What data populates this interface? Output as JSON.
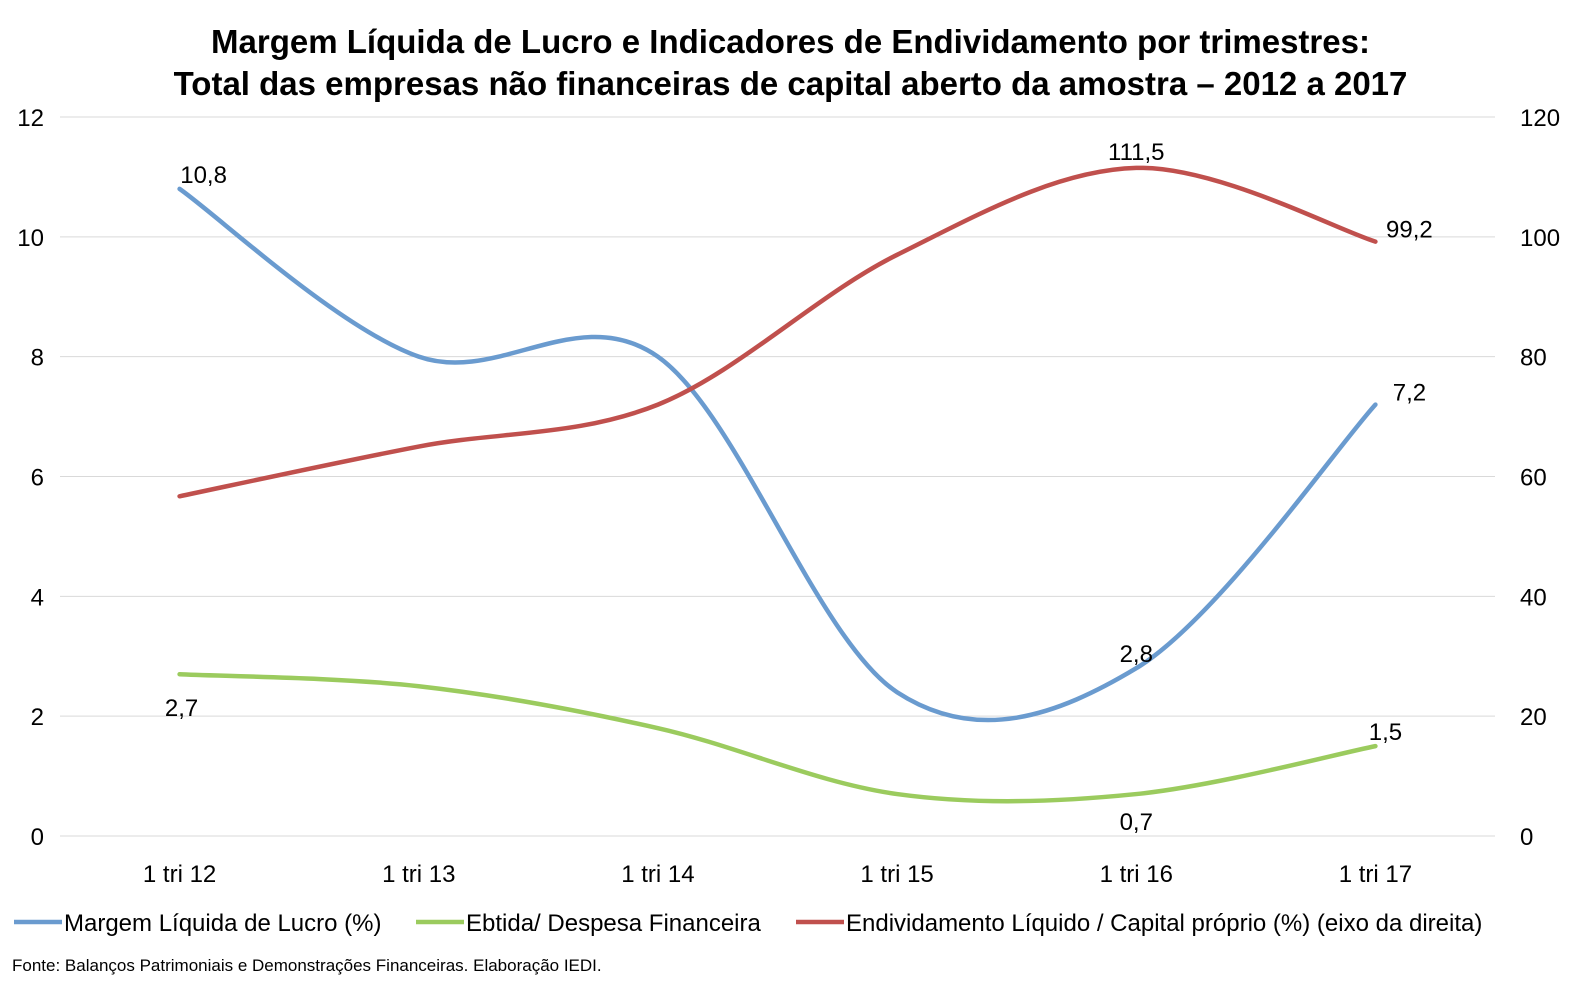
{
  "title_line1": "Margem Líquida de Lucro e Indicadores de Endividamento por trimestres:",
  "title_line2": "Total das empresas não financeiras de capital aberto da amostra – 2012 a 2017",
  "source": "Fonte: Balanços Patrimoniais e Demonstrações Financeiras. Elaboração IEDI.",
  "chart_data": {
    "type": "line",
    "categories": [
      "1 tri 12",
      "1 tri 13",
      "1 tri 14",
      "1 tri 15",
      "1 tri 16",
      "1 tri 17"
    ],
    "y_left": {
      "min": 0,
      "max": 12,
      "ticks": [
        "0",
        "2",
        "4",
        "6",
        "8",
        "10",
        "12"
      ]
    },
    "y_right": {
      "min": 0,
      "max": 120,
      "ticks": [
        "0",
        "20",
        "40",
        "60",
        "80",
        "100",
        "120"
      ]
    },
    "grid": true,
    "legend_position": "bottom",
    "series": [
      {
        "name": "Margem Líquida de Lucro (%)",
        "axis": "left",
        "color": "#6A9BCF",
        "values": [
          10.8,
          8.0,
          8.0,
          2.4,
          2.8,
          7.2
        ],
        "labels": [
          "10,8",
          "",
          "",
          "",
          "2,8",
          "7,2"
        ]
      },
      {
        "name": "Ebtida/ Despesa Financeira",
        "axis": "left",
        "color": "#9BCB5E",
        "values": [
          2.7,
          2.5,
          1.8,
          0.7,
          0.7,
          1.5
        ],
        "labels": [
          "2,7",
          "",
          "",
          "",
          "0,7",
          "1,5"
        ]
      },
      {
        "name": "Endividamento Líquido / Capital próprio (%) (eixo da direita)",
        "axis": "right",
        "color": "#C0504D",
        "values": [
          56.7,
          65.0,
          72.0,
          97.0,
          111.5,
          99.2
        ],
        "labels": [
          "",
          "",
          "",
          "",
          "111,5",
          "99,2"
        ]
      }
    ]
  }
}
